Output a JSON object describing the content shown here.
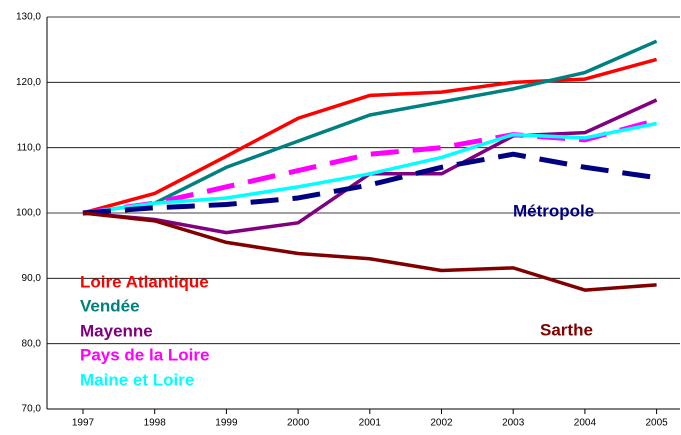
{
  "chart_data": {
    "type": "line",
    "categories": [
      "1997",
      "1998",
      "1999",
      "2000",
      "2001",
      "2002",
      "2003",
      "2004",
      "2005"
    ],
    "series": [
      {
        "name": "Loire Atlantique",
        "color": "#ff0000",
        "style": "solid",
        "values": [
          100,
          103,
          108.7,
          114.5,
          118,
          118.5,
          120,
          120.5,
          123.5
        ]
      },
      {
        "name": "Vendée",
        "color": "#008080",
        "style": "solid",
        "values": [
          100,
          101.5,
          107,
          111,
          115,
          117,
          119,
          121.5,
          126.3
        ]
      },
      {
        "name": "Mayenne",
        "color": "#800080",
        "style": "solid",
        "values": [
          100,
          99,
          97,
          98.5,
          106,
          106,
          111.8,
          112.3,
          117.3
        ]
      },
      {
        "name": "Pays de la Loire",
        "color": "#ff00ff",
        "style": "dashed",
        "values": [
          100,
          101.5,
          104,
          106.5,
          109,
          110,
          112,
          111.2,
          114.2
        ]
      },
      {
        "name": "Maine et Loire",
        "color": "#00ffff",
        "style": "solid",
        "values": [
          100,
          101.5,
          102.3,
          104,
          106,
          108.5,
          112,
          111.5,
          113.7
        ]
      },
      {
        "name": "Métropole",
        "color": "#000080",
        "style": "dashed",
        "values": [
          100,
          100.8,
          101.3,
          102.3,
          104.3,
          107,
          109,
          107,
          105.4
        ]
      },
      {
        "name": "Sarthe",
        "color": "#800000",
        "style": "solid",
        "values": [
          100,
          98.8,
          95.5,
          93.8,
          93,
          91.2,
          91.6,
          88.2,
          89
        ]
      }
    ],
    "ylim": [
      70,
      130
    ],
    "yticks": [
      {
        "value": 70,
        "label": "70,0"
      },
      {
        "value": 80,
        "label": "80,0"
      },
      {
        "value": 90,
        "label": "90,0"
      },
      {
        "value": 100,
        "label": "100,0"
      },
      {
        "value": 110,
        "label": "110,0"
      },
      {
        "value": 120,
        "label": "120,0"
      },
      {
        "value": 130,
        "label": "130,0"
      }
    ],
    "grid": true
  }
}
